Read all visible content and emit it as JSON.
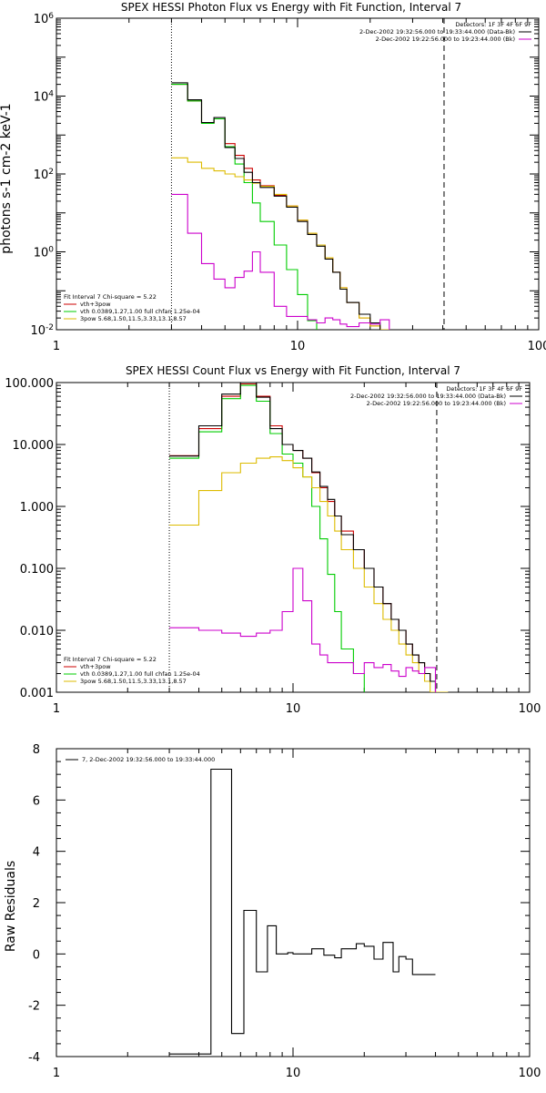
{
  "chart_data": [
    {
      "type": "line",
      "title": "SPEX HESSI Photon Flux vs Energy with Fit Function, Interval 7",
      "ylabel": "photons s-1 cm-2 keV-1",
      "xlabel": "",
      "xscale": "log",
      "yscale": "log",
      "xlim": [
        1,
        100
      ],
      "ylim": [
        0.01,
        1000000
      ],
      "x_ticks": [
        "1",
        "10",
        "100"
      ],
      "y_ticks": [
        "10-2",
        "100",
        "102",
        "104",
        "106"
      ],
      "vlines": {
        "dotted": 3.0,
        "dashed": 40.5
      },
      "legend_top": {
        "header": "Detectors: 1F 3F 4F 6F 9F",
        "entries": [
          {
            "label": "2-Dec-2002 19:32:56.000 to 19:33:44.000 (Data-Bk)",
            "color": "#000000"
          },
          {
            "label": "2-Dec-2002 19:22:56.000 to 19:23:44.000 (Bk)",
            "color": "#cc00cc"
          }
        ]
      },
      "legend_bottom": {
        "header": "Fit Interval 7   Chi-square = 5.22",
        "entries": [
          {
            "label": "vth+3pow",
            "color": "#cc0000"
          },
          {
            "label": "vth 0.0389,1.27,1.00  full chfan 1.25e-04",
            "color": "#00cc00"
          },
          {
            "label": "3pow 5.68,1.50,11.5,3.33,13.1,8.57",
            "color": "#ddbb00"
          }
        ]
      },
      "edges": [
        3.0,
        3.5,
        4.0,
        4.5,
        5.0,
        5.5,
        6.0,
        6.5,
        7.0,
        8.0,
        9.0,
        10.0,
        11.0,
        12.0,
        13.0,
        14.0,
        15.0,
        16.0,
        18.0,
        20.0,
        22.0,
        24.0,
        26.0,
        28.0,
        30.0,
        32.0,
        34.0,
        36.0,
        38.0,
        40.0,
        45.0,
        50.0
      ],
      "series": [
        {
          "name": "vth+3pow",
          "color": "#cc0000",
          "values": [
            20000,
            7500,
            2000,
            2600,
            600,
            300,
            140,
            70,
            50,
            28,
            15,
            6.5,
            3.0,
            1.5,
            0.7,
            0.3,
            0.12,
            0.05,
            0.02,
            0.0125,
            0.01,
            null
          ]
        },
        {
          "name": "vth 0.0389,1.27,1.00  full chfan 1.25e-04",
          "color": "#00cc00",
          "values": [
            20000,
            7500,
            2000,
            2600,
            500,
            180,
            60,
            18,
            6,
            1.5,
            0.35,
            0.08,
            0.017,
            0.003,
            null,
            null,
            null,
            null,
            null,
            null,
            null,
            null
          ]
        },
        {
          "name": "3pow 5.68,1.50,11.5,3.33,13.1,8.57",
          "color": "#ddbb00",
          "values": [
            260,
            200,
            140,
            120,
            100,
            85,
            70,
            58,
            48,
            30,
            15,
            6.5,
            3.0,
            1.5,
            0.7,
            0.3,
            0.12,
            0.05,
            0.02,
            0.0125,
            0.01,
            null
          ]
        },
        {
          "name": "2-Dec-2002 19:32:56.000 to 19:33:44.000 (Data-Bk)",
          "color": "#000000",
          "values": [
            22000,
            8000,
            2100,
            2800,
            480,
            250,
            110,
            60,
            45,
            27,
            14,
            6.0,
            2.8,
            1.4,
            0.65,
            0.3,
            0.11,
            0.05,
            0.025,
            0.015,
            null,
            null
          ]
        },
        {
          "name": "2-Dec-2002 19:22:56.000 to 19:23:44.000 (Bk)",
          "color": "#cc00cc",
          "values": [
            30,
            3,
            0.5,
            0.2,
            0.12,
            0.22,
            0.32,
            1.0,
            0.3,
            0.04,
            0.022,
            0.022,
            0.018,
            0.015,
            0.02,
            0.018,
            0.014,
            0.012,
            0.015,
            0.014,
            0.018,
            null
          ]
        }
      ]
    },
    {
      "type": "line",
      "title": "SPEX HESSI Count Flux vs Energy with Fit Function, Interval 7",
      "ylabel": "",
      "xlabel": "",
      "xscale": "log",
      "yscale": "log",
      "xlim": [
        1,
        100
      ],
      "ylim": [
        0.001,
        100
      ],
      "x_ticks": [
        "1",
        "10",
        "100"
      ],
      "y_ticks": [
        "0.001",
        "0.010",
        "0.100",
        "1.000",
        "10.000",
        "100.000"
      ],
      "vlines": {
        "dotted": 3.0,
        "dashed": 40.5
      },
      "legend_top": {
        "header": "Detectors: 1F 3F 4F 6F 9F",
        "entries": [
          {
            "label": "2-Dec-2002 19:32:56.000 to 19:33:44.000 (Data-Bk)",
            "color": "#000000"
          },
          {
            "label": "2-Dec-2002 19:22:56.000 to 19:23:44.000 (Bk)",
            "color": "#cc00cc"
          }
        ]
      },
      "legend_bottom": {
        "header": "Fit Interval 7   Chi-square = 5.22",
        "entries": [
          {
            "label": "vth+3pow",
            "color": "#cc0000"
          },
          {
            "label": "vth 0.0389,1.27,1.00  full chfan 1.25e-04",
            "color": "#00cc00"
          },
          {
            "label": "3pow 5.68,1.50,11.5,3.33,13.1,8.57",
            "color": "#ddbb00"
          }
        ]
      },
      "edges": [
        3,
        4,
        5,
        6,
        7,
        8,
        9,
        10,
        11,
        12,
        13,
        14,
        15,
        16,
        18,
        20,
        22,
        24,
        26,
        28,
        30,
        32,
        34,
        36,
        38,
        40,
        45,
        50
      ],
      "series": [
        {
          "name": "vth+3pow",
          "color": "#cc0000",
          "values": [
            6.6,
            18,
            60,
            95,
            60,
            20,
            10,
            8,
            6,
            3.5,
            2,
            1.2,
            0.7,
            0.4,
            0.2,
            0.1,
            0.05,
            0.027,
            0.015,
            0.01,
            0.006,
            0.004,
            0.003,
            0.002,
            0.0015,
            null,
            null
          ]
        },
        {
          "name": "vth 0.0389,1.27,1.00  full chfan 1.25e-04",
          "color": "#00cc00",
          "values": [
            6.0,
            16,
            55,
            90,
            50,
            15,
            7,
            5,
            3,
            1,
            0.3,
            0.08,
            0.02,
            0.005,
            0.002,
            null,
            null,
            null,
            null,
            null,
            null,
            null,
            null,
            null,
            null,
            null,
            null
          ]
        },
        {
          "name": "3pow 5.68,1.50,11.5,3.33,13.1,8.57",
          "color": "#ddbb00",
          "values": [
            0.5,
            1.8,
            3.5,
            5.0,
            6.0,
            6.3,
            5.5,
            4.2,
            3.0,
            2.0,
            1.2,
            0.7,
            0.4,
            0.2,
            0.1,
            0.05,
            0.027,
            0.015,
            0.01,
            0.006,
            0.004,
            0.003,
            0.002,
            0.0015,
            0.001,
            0.001,
            0.0005
          ]
        },
        {
          "name": "2-Dec-2002 19:32:56.000 to 19:33:44.000 (Data-Bk)",
          "color": "#000000",
          "values": [
            6.5,
            20,
            65,
            100,
            58,
            18,
            10,
            8,
            6,
            3.6,
            2.1,
            1.3,
            0.7,
            0.35,
            0.2,
            0.1,
            0.05,
            0.027,
            0.015,
            0.01,
            0.006,
            0.004,
            0.003,
            0.002,
            0.0015,
            null,
            null
          ]
        },
        {
          "name": "2-Dec-2002 19:22:56.000 to 19:23:44.000 (Bk)",
          "color": "#cc00cc",
          "values": [
            0.011,
            0.01,
            0.009,
            0.008,
            0.009,
            0.01,
            0.02,
            0.1,
            0.03,
            0.006,
            0.004,
            0.003,
            0.003,
            0.003,
            0.002,
            0.003,
            0.0025,
            0.0028,
            0.0022,
            0.0018,
            0.0025,
            0.0022,
            0.002,
            0.0025,
            0.0025,
            null,
            null
          ]
        }
      ]
    },
    {
      "type": "line",
      "title": "",
      "ylabel": "Raw Residuals",
      "xlabel": "",
      "xscale": "log",
      "yscale": "linear",
      "xlim": [
        1,
        100
      ],
      "ylim": [
        -4,
        8
      ],
      "x_ticks": [
        "1",
        "10",
        "100"
      ],
      "y_ticks": [
        "-4",
        "-2",
        "0",
        "2",
        "4",
        "6",
        "8"
      ],
      "legend": {
        "label": "7,  2-Dec-2002 19:32:56.000 to 19:33:44.000",
        "color": "#000000"
      },
      "edges": [
        3.0,
        4.0,
        4.5,
        5.5,
        6.2,
        7.0,
        7.8,
        8.5,
        9.5,
        10.0,
        11.0,
        12.0,
        13.5,
        15.0,
        16.0,
        17.0,
        18.5,
        20.0,
        22.0,
        24.0,
        26.5,
        28.0,
        30.0,
        32.0,
        34.0,
        36.0,
        38.0,
        40.0
      ],
      "series": [
        {
          "name": "",
          "color": "#000000",
          "values": [
            -3.9,
            -3.9,
            7.2,
            -3.1,
            1.7,
            -0.7,
            1.1,
            0,
            0.05,
            0,
            0,
            0.2,
            -0.05,
            -0.15,
            0.2,
            0.2,
            0.4,
            0.3,
            -0.2,
            0.45,
            -0.7,
            -0.1,
            -0.2,
            -0.8,
            -0.8,
            -0.8,
            -0.8
          ]
        }
      ]
    }
  ]
}
